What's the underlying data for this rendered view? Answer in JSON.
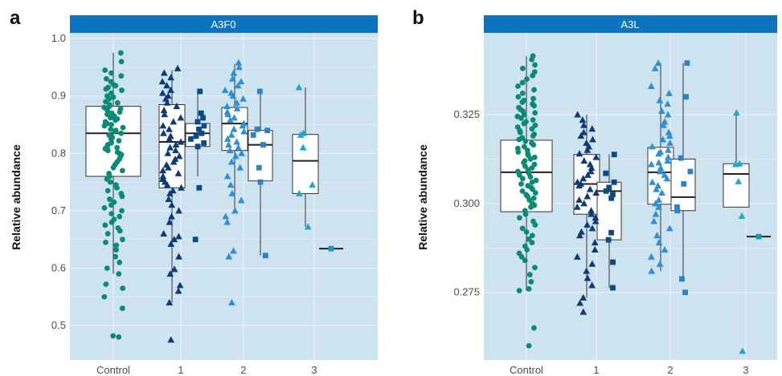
{
  "colors": {
    "panel_bg": "#cde3f0",
    "grid": "#e8f1f7",
    "strip": "#0a74be",
    "control": "#0b8a76",
    "group1_triangle": "#0d3b78",
    "group1_square": "#0a4a86",
    "group2_triangle": "#2f8fd6",
    "group2_square": "#2a82c8",
    "group3_triangle": "#22a7cc",
    "group3_square": "#1a97b9"
  },
  "chart_data": [
    {
      "type": "box",
      "panel_letter": "a",
      "strip_title": "A3F0",
      "ylabel": "Relative abundance",
      "ylim": [
        0.44,
        1.01
      ],
      "yticks": [
        "1.0",
        "0.9",
        "0.8",
        "0.7",
        "0.6",
        "0.5"
      ],
      "categories": [
        "Control",
        "1",
        "2",
        "3"
      ],
      "grid": true,
      "boxes": [
        {
          "group": "Control",
          "subgroup": "circle",
          "q1": 0.76,
          "median": 0.835,
          "q3": 0.882,
          "whisker_low": 0.59,
          "whisker_high": 0.975
        },
        {
          "group": "1",
          "subgroup": "triangle",
          "q1": 0.74,
          "median": 0.82,
          "q3": 0.885,
          "whisker_low": 0.54,
          "whisker_high": 0.945
        },
        {
          "group": "1",
          "subgroup": "square",
          "q1": 0.812,
          "median": 0.835,
          "q3": 0.852,
          "whisker_low": 0.76,
          "whisker_high": 0.908
        },
        {
          "group": "2",
          "subgroup": "triangle",
          "q1": 0.805,
          "median": 0.852,
          "q3": 0.88,
          "whisker_low": 0.7,
          "whisker_high": 0.955
        },
        {
          "group": "2",
          "subgroup": "square",
          "q1": 0.752,
          "median": 0.815,
          "q3": 0.84,
          "whisker_low": 0.622,
          "whisker_high": 0.907
        },
        {
          "group": "3",
          "subgroup": "triangle",
          "q1": 0.73,
          "median": 0.787,
          "q3": 0.833,
          "whisker_low": 0.672,
          "whisker_high": 0.915
        },
        {
          "group": "3",
          "subgroup": "square",
          "q1": 0.634,
          "median": 0.634,
          "q3": 0.634,
          "whisker_low": 0.634,
          "whisker_high": 0.634
        }
      ],
      "points": {
        "control": [
          0.975,
          0.96,
          0.945,
          0.94,
          0.935,
          0.93,
          0.925,
          0.92,
          0.918,
          0.915,
          0.912,
          0.91,
          0.905,
          0.9,
          0.898,
          0.895,
          0.89,
          0.888,
          0.885,
          0.882,
          0.88,
          0.878,
          0.875,
          0.872,
          0.87,
          0.868,
          0.865,
          0.862,
          0.86,
          0.858,
          0.855,
          0.852,
          0.85,
          0.848,
          0.845,
          0.842,
          0.84,
          0.838,
          0.835,
          0.832,
          0.83,
          0.828,
          0.825,
          0.822,
          0.82,
          0.818,
          0.815,
          0.812,
          0.81,
          0.808,
          0.805,
          0.802,
          0.8,
          0.798,
          0.795,
          0.79,
          0.785,
          0.78,
          0.775,
          0.77,
          0.765,
          0.76,
          0.755,
          0.75,
          0.745,
          0.74,
          0.735,
          0.73,
          0.725,
          0.72,
          0.715,
          0.71,
          0.705,
          0.7,
          0.695,
          0.69,
          0.685,
          0.68,
          0.675,
          0.67,
          0.665,
          0.66,
          0.65,
          0.645,
          0.64,
          0.632,
          0.62,
          0.61,
          0.6,
          0.59,
          0.572,
          0.565,
          0.55,
          0.53,
          0.482,
          0.48
        ],
        "g1_triangle": [
          0.948,
          0.94,
          0.932,
          0.925,
          0.918,
          0.91,
          0.905,
          0.9,
          0.895,
          0.888,
          0.882,
          0.875,
          0.868,
          0.862,
          0.855,
          0.848,
          0.842,
          0.835,
          0.83,
          0.825,
          0.82,
          0.815,
          0.81,
          0.805,
          0.8,
          0.795,
          0.79,
          0.785,
          0.78,
          0.775,
          0.77,
          0.765,
          0.76,
          0.755,
          0.75,
          0.745,
          0.74,
          0.735,
          0.73,
          0.72,
          0.71,
          0.7,
          0.69,
          0.68,
          0.66,
          0.655,
          0.65,
          0.642,
          0.62,
          0.598,
          0.59,
          0.57,
          0.56,
          0.54,
          0.475
        ],
        "g1_square": [
          0.908,
          0.87,
          0.862,
          0.855,
          0.848,
          0.842,
          0.835,
          0.83,
          0.825,
          0.818,
          0.812,
          0.74,
          0.65
        ],
        "g2_triangle": [
          0.958,
          0.95,
          0.94,
          0.93,
          0.925,
          0.918,
          0.91,
          0.905,
          0.9,
          0.895,
          0.888,
          0.882,
          0.878,
          0.872,
          0.868,
          0.862,
          0.858,
          0.852,
          0.848,
          0.842,
          0.838,
          0.832,
          0.825,
          0.82,
          0.815,
          0.81,
          0.805,
          0.8,
          0.795,
          0.785,
          0.775,
          0.76,
          0.745,
          0.73,
          0.718,
          0.7,
          0.69,
          0.68,
          0.63,
          0.62,
          0.54
        ],
        "g2_square": [
          0.908,
          0.842,
          0.84,
          0.832,
          0.815,
          0.775,
          0.75,
          0.622
        ],
        "g3_triangle": [
          0.915,
          0.835,
          0.832,
          0.81,
          0.745,
          0.73,
          0.672
        ],
        "g3_square": [
          0.634
        ]
      }
    },
    {
      "type": "box",
      "panel_letter": "b",
      "strip_title": "A3L",
      "ylabel": "Relative abundance",
      "ylim": [
        0.256,
        0.348
      ],
      "yticks": [
        "0.325",
        "0.300",
        "0.275"
      ],
      "categories": [
        "Control",
        "1",
        "2",
        "3"
      ],
      "grid": true,
      "boxes": [
        {
          "group": "Control",
          "subgroup": "circle",
          "q1": 0.2977,
          "median": 0.3088,
          "q3": 0.3178,
          "whisker_low": 0.2755,
          "whisker_high": 0.3415
        },
        {
          "group": "1",
          "subgroup": "triangle",
          "q1": 0.297,
          "median": 0.3055,
          "q3": 0.3138,
          "whisker_low": 0.2735,
          "whisker_high": 0.325
        },
        {
          "group": "1",
          "subgroup": "square",
          "q1": 0.2898,
          "median": 0.3035,
          "q3": 0.306,
          "whisker_low": 0.2763,
          "whisker_high": 0.3138
        },
        {
          "group": "2",
          "subgroup": "triangle",
          "q1": 0.2998,
          "median": 0.3088,
          "q3": 0.3158,
          "whisker_low": 0.281,
          "whisker_high": 0.3395
        },
        {
          "group": "2",
          "subgroup": "square",
          "q1": 0.298,
          "median": 0.3018,
          "q3": 0.3125,
          "whisker_low": 0.2785,
          "whisker_high": 0.3395
        },
        {
          "group": "3",
          "subgroup": "triangle",
          "q1": 0.299,
          "median": 0.3083,
          "q3": 0.3112,
          "whisker_low": 0.299,
          "whisker_high": 0.325
        },
        {
          "group": "3",
          "subgroup": "square",
          "q1": 0.2907,
          "median": 0.2907,
          "q3": 0.2907,
          "whisker_low": 0.2907,
          "whisker_high": 0.2907
        }
      ],
      "points": {
        "control": [
          0.3415,
          0.3405,
          0.339,
          0.338,
          0.337,
          0.336,
          0.335,
          0.334,
          0.333,
          0.332,
          0.331,
          0.33,
          0.3295,
          0.329,
          0.3285,
          0.328,
          0.3275,
          0.327,
          0.3265,
          0.326,
          0.3255,
          0.325,
          0.3245,
          0.324,
          0.3235,
          0.323,
          0.3225,
          0.322,
          0.3215,
          0.321,
          0.3205,
          0.32,
          0.3195,
          0.319,
          0.3185,
          0.318,
          0.3175,
          0.317,
          0.3165,
          0.316,
          0.3155,
          0.315,
          0.3145,
          0.314,
          0.3135,
          0.313,
          0.3125,
          0.312,
          0.3115,
          0.311,
          0.3105,
          0.31,
          0.3095,
          0.309,
          0.3085,
          0.308,
          0.3075,
          0.307,
          0.3065,
          0.306,
          0.3055,
          0.305,
          0.3045,
          0.304,
          0.3035,
          0.303,
          0.3025,
          0.302,
          0.3015,
          0.301,
          0.3,
          0.2995,
          0.299,
          0.298,
          0.297,
          0.296,
          0.295,
          0.294,
          0.293,
          0.292,
          0.291,
          0.29,
          0.289,
          0.288,
          0.287,
          0.286,
          0.285,
          0.284,
          0.282,
          0.28,
          0.278,
          0.276,
          0.2755,
          0.265,
          0.26
        ],
        "g1_triangle": [
          0.325,
          0.3235,
          0.322,
          0.321,
          0.32,
          0.319,
          0.318,
          0.317,
          0.316,
          0.315,
          0.314,
          0.313,
          0.312,
          0.311,
          0.31,
          0.309,
          0.308,
          0.307,
          0.306,
          0.3055,
          0.305,
          0.304,
          0.303,
          0.302,
          0.301,
          0.3,
          0.299,
          0.298,
          0.297,
          0.296,
          0.295,
          0.294,
          0.293,
          0.292,
          0.291,
          0.289,
          0.287,
          0.285,
          0.283,
          0.281,
          0.279,
          0.277,
          0.2735,
          0.272,
          0.2695
        ],
        "g1_square": [
          0.3138,
          0.3085,
          0.306,
          0.3045,
          0.3035,
          0.3025,
          0.3015,
          0.2918,
          0.2898,
          0.2835,
          0.2763
        ],
        "g2_triangle": [
          0.3395,
          0.338,
          0.333,
          0.331,
          0.329,
          0.328,
          0.326,
          0.325,
          0.323,
          0.322,
          0.32,
          0.319,
          0.318,
          0.317,
          0.316,
          0.315,
          0.3145,
          0.314,
          0.313,
          0.312,
          0.3115,
          0.311,
          0.31,
          0.309,
          0.308,
          0.307,
          0.306,
          0.305,
          0.304,
          0.303,
          0.301,
          0.3,
          0.299,
          0.297,
          0.295,
          0.293,
          0.291,
          0.289,
          0.287,
          0.285,
          0.283,
          0.281
        ],
        "g2_square": [
          0.3395,
          0.33,
          0.3128,
          0.309,
          0.3055,
          0.299,
          0.298,
          0.2788,
          0.275
        ],
        "g3_triangle": [
          0.3255,
          0.3112,
          0.311,
          0.3062,
          0.2965,
          0.2585
        ],
        "g3_square": [
          0.2907
        ]
      }
    }
  ]
}
